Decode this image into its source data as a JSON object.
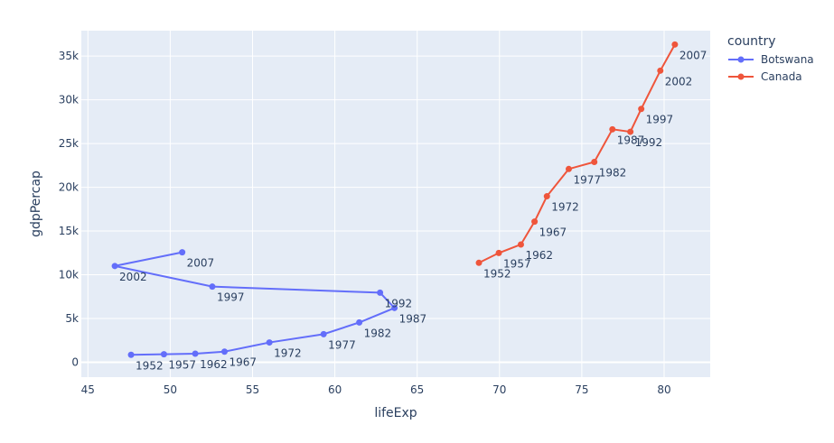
{
  "chart_data": {
    "type": "line",
    "title": "",
    "xlabel": "lifeExp",
    "ylabel": "gdpPercap",
    "xlim": [
      44.6,
      82.8
    ],
    "ylim": [
      -1700,
      37900
    ],
    "x_ticks": [
      45,
      50,
      55,
      60,
      65,
      70,
      75,
      80
    ],
    "y_ticks": [
      0,
      5000,
      10000,
      15000,
      20000,
      25000,
      30000,
      35000
    ],
    "y_tick_labels": [
      "0",
      "5k",
      "10k",
      "15k",
      "20k",
      "25k",
      "30k",
      "35k"
    ],
    "grid": true,
    "legend_title": "country",
    "legend_position": "right",
    "series": [
      {
        "name": "Botswana",
        "color": "#636efa",
        "points": [
          {
            "label": "1952",
            "x": 47.622,
            "y": 851.24
          },
          {
            "label": "1957",
            "x": 49.618,
            "y": 918.23
          },
          {
            "label": "1962",
            "x": 51.52,
            "y": 983.65
          },
          {
            "label": "1967",
            "x": 53.298,
            "y": 1214.71
          },
          {
            "label": "1972",
            "x": 56.024,
            "y": 2263.61
          },
          {
            "label": "1977",
            "x": 59.319,
            "y": 3214.86
          },
          {
            "label": "1982",
            "x": 61.484,
            "y": 4551.14
          },
          {
            "label": "1987",
            "x": 63.622,
            "y": 6205.88
          },
          {
            "label": "1992",
            "x": 62.745,
            "y": 7954.11
          },
          {
            "label": "1997",
            "x": 52.556,
            "y": 8647.14
          },
          {
            "label": "2002",
            "x": 46.634,
            "y": 11003.61
          },
          {
            "label": "2007",
            "x": 50.728,
            "y": 12569.85
          }
        ]
      },
      {
        "name": "Canada",
        "color": "#EF553B",
        "points": [
          {
            "label": "1952",
            "x": 68.75,
            "y": 11367.16
          },
          {
            "label": "1957",
            "x": 69.96,
            "y": 12489.95
          },
          {
            "label": "1962",
            "x": 71.3,
            "y": 13462.49
          },
          {
            "label": "1967",
            "x": 72.13,
            "y": 16076.59
          },
          {
            "label": "1972",
            "x": 72.88,
            "y": 18970.57
          },
          {
            "label": "1977",
            "x": 74.21,
            "y": 22090.88
          },
          {
            "label": "1982",
            "x": 75.76,
            "y": 22898.79
          },
          {
            "label": "1987",
            "x": 76.86,
            "y": 26626.52
          },
          {
            "label": "1992",
            "x": 77.95,
            "y": 26342.88
          },
          {
            "label": "1997",
            "x": 78.61,
            "y": 28954.93
          },
          {
            "label": "2002",
            "x": 79.77,
            "y": 33328.97
          },
          {
            "label": "2007",
            "x": 80.653,
            "y": 36319.24
          }
        ]
      }
    ]
  },
  "style": {
    "plot_bg": "#e5ecf6",
    "grid": "#ffffff",
    "tick_text": "#2a3f5f",
    "label_text": "#2a3f5f"
  }
}
